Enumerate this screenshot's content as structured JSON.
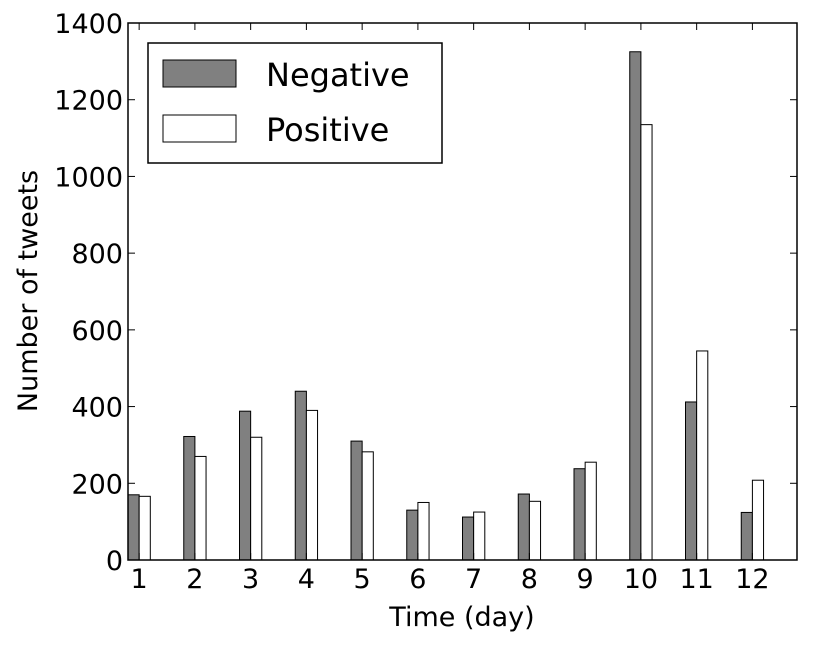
{
  "chart_data": {
    "type": "bar",
    "title": "",
    "xlabel": "Time (day)",
    "ylabel": "Number of tweets",
    "categories": [
      "1",
      "2",
      "3",
      "4",
      "5",
      "6",
      "7",
      "8",
      "9",
      "10",
      "11",
      "12"
    ],
    "series": [
      {
        "name": "Negative",
        "color": "#808080",
        "values": [
          170,
          322,
          388,
          440,
          310,
          130,
          112,
          172,
          238,
          1325,
          412,
          124
        ]
      },
      {
        "name": "Positive",
        "color": "#ffffff",
        "values": [
          166,
          270,
          320,
          390,
          282,
          150,
          125,
          153,
          255,
          1135,
          545,
          208
        ]
      }
    ],
    "ylim": [
      0,
      1400
    ],
    "yticks": [
      "0",
      "200",
      "400",
      "600",
      "800",
      "1000",
      "1200",
      "1400"
    ],
    "grid": false,
    "legend_position": "top-left"
  }
}
